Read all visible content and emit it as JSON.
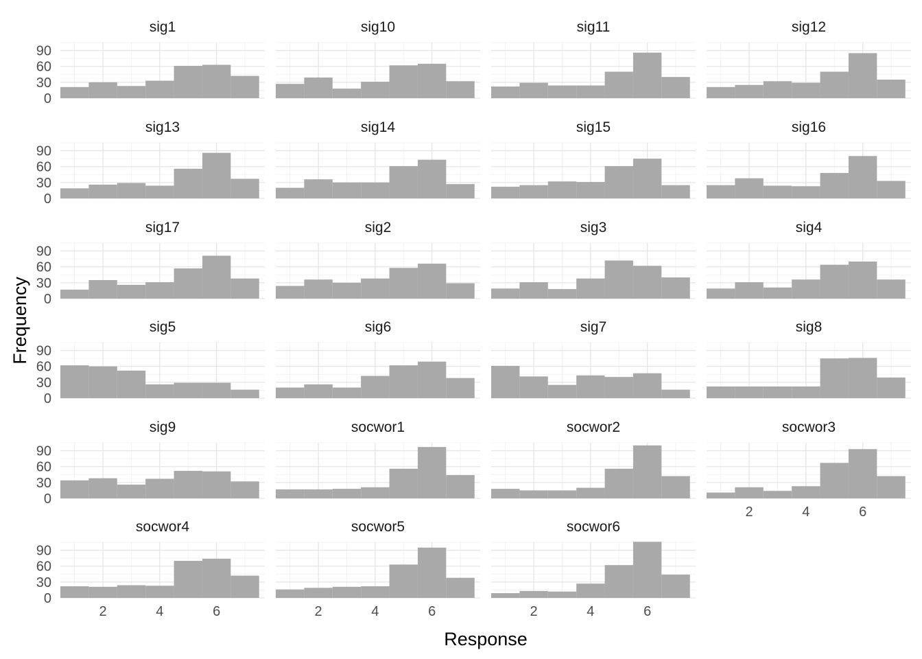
{
  "chart_data": {
    "type": "bar",
    "subtype": "faceted-histogram",
    "xlabel": "Response",
    "ylabel": "Frequency",
    "x_bins": [
      1,
      2,
      3,
      4,
      5,
      6,
      7
    ],
    "bin_width": 1,
    "xlim": [
      0.5,
      7.7
    ],
    "ylim": [
      0,
      105
    ],
    "x_ticks": [
      2,
      4,
      6
    ],
    "y_ticks": [
      0,
      30,
      60,
      90
    ],
    "grid": true,
    "bar_color": "#a9a9a9",
    "facets": [
      {
        "name": "sig1",
        "values": [
          21,
          30,
          23,
          33,
          61,
          63,
          42
        ]
      },
      {
        "name": "sig10",
        "values": [
          27,
          39,
          18,
          31,
          62,
          65,
          32
        ]
      },
      {
        "name": "sig11",
        "values": [
          22,
          29,
          24,
          24,
          50,
          86,
          40
        ]
      },
      {
        "name": "sig12",
        "values": [
          21,
          25,
          32,
          29,
          50,
          85,
          35
        ]
      },
      {
        "name": "sig13",
        "values": [
          19,
          26,
          29,
          24,
          56,
          86,
          37
        ]
      },
      {
        "name": "sig14",
        "values": [
          20,
          36,
          30,
          30,
          61,
          73,
          27
        ]
      },
      {
        "name": "sig15",
        "values": [
          22,
          25,
          32,
          31,
          61,
          75,
          25
        ]
      },
      {
        "name": "sig16",
        "values": [
          25,
          38,
          24,
          23,
          48,
          80,
          33
        ]
      },
      {
        "name": "sig17",
        "values": [
          17,
          35,
          26,
          31,
          57,
          81,
          38
        ]
      },
      {
        "name": "sig2",
        "values": [
          24,
          36,
          30,
          38,
          58,
          66,
          29
        ]
      },
      {
        "name": "sig3",
        "values": [
          19,
          31,
          18,
          38,
          72,
          62,
          40
        ]
      },
      {
        "name": "sig4",
        "values": [
          19,
          31,
          21,
          36,
          64,
          70,
          36
        ]
      },
      {
        "name": "sig5",
        "values": [
          62,
          60,
          52,
          26,
          29,
          29,
          16
        ]
      },
      {
        "name": "sig6",
        "values": [
          20,
          26,
          20,
          42,
          62,
          69,
          38
        ]
      },
      {
        "name": "sig7",
        "values": [
          61,
          41,
          25,
          43,
          40,
          47,
          16
        ]
      },
      {
        "name": "sig8",
        "values": [
          22,
          22,
          22,
          22,
          75,
          76,
          39
        ]
      },
      {
        "name": "sig9",
        "values": [
          34,
          38,
          26,
          37,
          52,
          51,
          32
        ]
      },
      {
        "name": "socwor1",
        "values": [
          17,
          17,
          18,
          21,
          56,
          97,
          44
        ]
      },
      {
        "name": "socwor2",
        "values": [
          18,
          15,
          15,
          20,
          56,
          100,
          42
        ]
      },
      {
        "name": "socwor3",
        "values": [
          11,
          21,
          14,
          23,
          67,
          93,
          42
        ]
      },
      {
        "name": "socwor4",
        "values": [
          22,
          21,
          24,
          23,
          70,
          74,
          42
        ]
      },
      {
        "name": "socwor5",
        "values": [
          16,
          19,
          21,
          22,
          63,
          95,
          38
        ]
      },
      {
        "name": "socwor6",
        "values": [
          9,
          13,
          12,
          27,
          62,
          106,
          44
        ]
      }
    ]
  }
}
